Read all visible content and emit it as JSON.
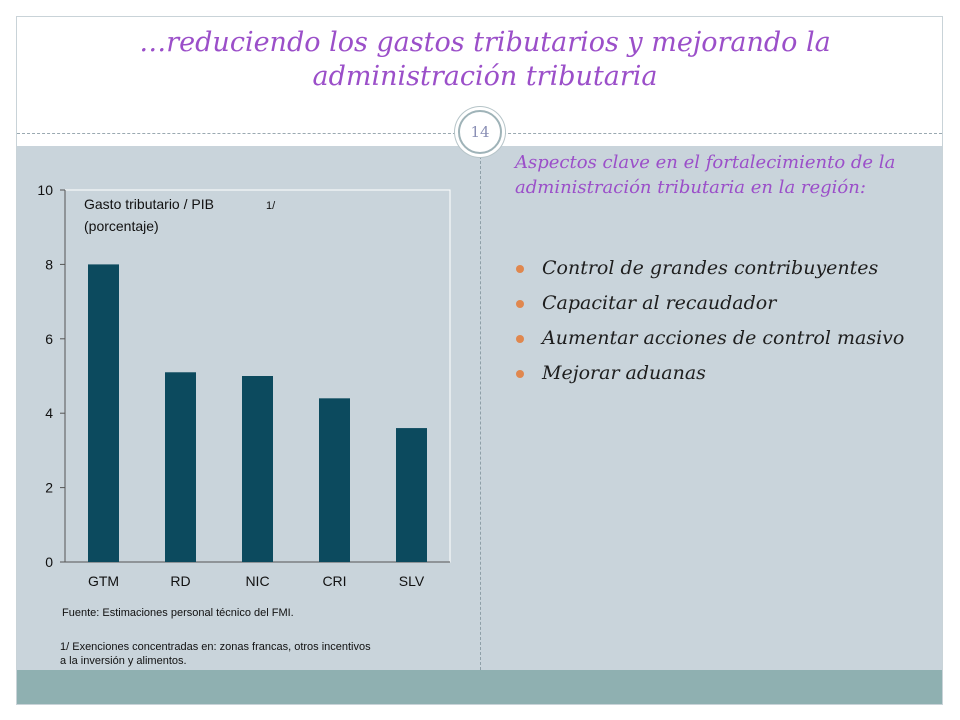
{
  "slide": {
    "title": "…reduciendo los gastos tributarios y mejorando la administración tributaria",
    "number": "14"
  },
  "colors": {
    "title": "#9b4fc9",
    "bar": "#0c4a5e",
    "panel": "#c9d4db",
    "footer": "#8fb0b1",
    "bullet": "#e0874e"
  },
  "chart_data": {
    "type": "bar",
    "categories": [
      "GTM",
      "RD",
      "NIC",
      "CRI",
      "SLV"
    ],
    "values": [
      8.0,
      5.1,
      5.0,
      4.4,
      3.6
    ],
    "title": "Gasto tributario / PIB",
    "title_line2": "(porcentaje)",
    "title_footnote_marker": "1/",
    "xlabel": "",
    "ylabel": "",
    "ylim": [
      0,
      10
    ],
    "yticks": [
      "0",
      "2",
      "4",
      "6",
      "8",
      "10"
    ],
    "grid": false,
    "legend": "none"
  },
  "notes": {
    "source": "Fuente: Estimaciones personal técnico del FMI.",
    "footnote_line1": "1/ Exenciones concentradas en: zonas francas, otros incentivos",
    "footnote_line2": "a la inversión y alimentos."
  },
  "right_panel": {
    "heading": "Aspectos clave en el fortalecimiento de la administración tributaria en la región:",
    "bullets": [
      "Control de grandes contribuyentes",
      "Capacitar al recaudador",
      "Aumentar acciones de control masivo",
      "Mejorar aduanas"
    ]
  }
}
